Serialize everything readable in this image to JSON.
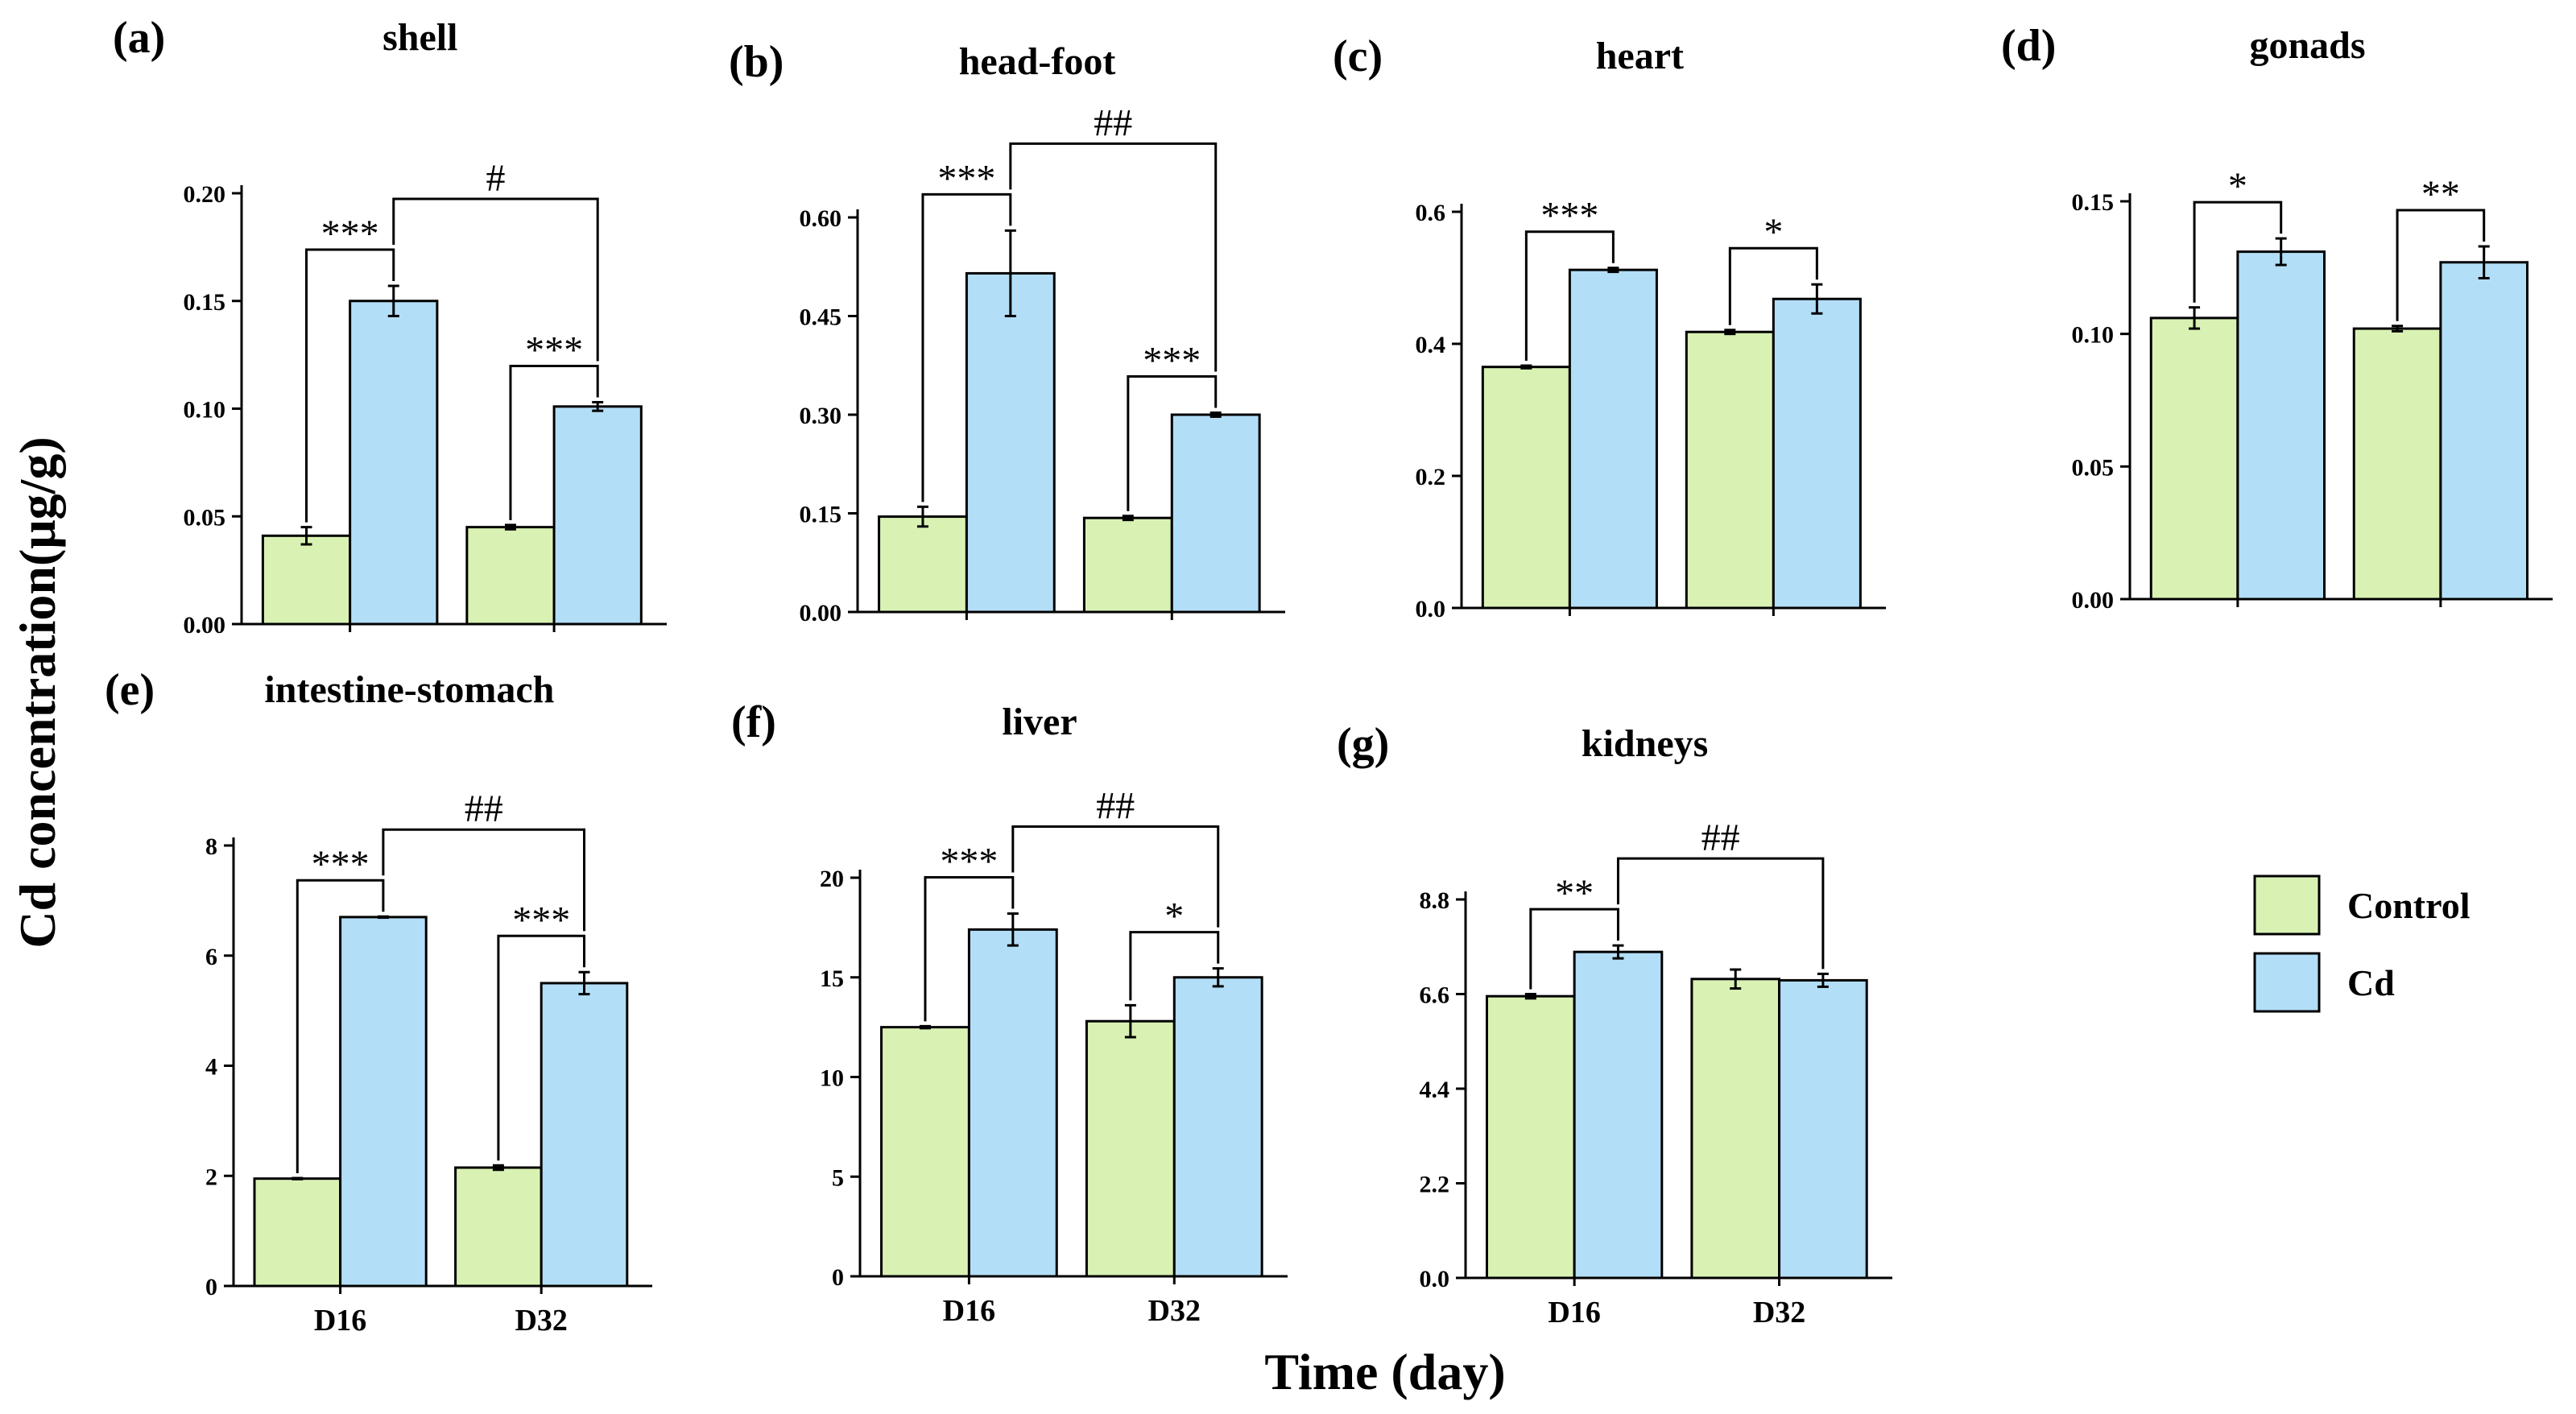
{
  "chart_data": {
    "type": "bar",
    "ylabel": "Cd concentration(μg/g)",
    "xlabel": "Time (day)",
    "categories": [
      "D16",
      "D32"
    ],
    "legend": [
      {
        "name": "Control",
        "color": "#d9f2b4"
      },
      {
        "name": "Cd",
        "color": "#b3def7"
      }
    ],
    "panels": [
      {
        "letter": "(a)",
        "title": "shell",
        "show_x_labels": false,
        "yticks": [
          "0.00",
          "0.05",
          "0.10",
          "0.15",
          "0.20"
        ],
        "ylim": [
          0,
          0.2
        ],
        "series": [
          {
            "name": "Control",
            "values": [
              0.041,
              0.045
            ],
            "errors": [
              0.004,
              0.001
            ]
          },
          {
            "name": "Cd",
            "values": [
              0.15,
              0.101
            ],
            "errors": [
              0.007,
              0.002
            ]
          }
        ],
        "sig_within": [
          "***",
          "***"
        ],
        "sig_between": "#"
      },
      {
        "letter": "(b)",
        "title": "head-foot",
        "show_x_labels": false,
        "yticks": [
          "0.00",
          "0.15",
          "0.30",
          "0.45",
          "0.60"
        ],
        "ylim": [
          0,
          0.6
        ],
        "series": [
          {
            "name": "Control",
            "values": [
              0.145,
              0.143
            ],
            "errors": [
              0.015,
              0.003
            ]
          },
          {
            "name": "Cd",
            "values": [
              0.515,
              0.3
            ],
            "errors": [
              0.065,
              0.003
            ]
          }
        ],
        "sig_within": [
          "***",
          "***"
        ],
        "sig_between": "##"
      },
      {
        "letter": "(c)",
        "title": "heart",
        "show_x_labels": false,
        "yticks": [
          "0.0",
          "0.2",
          "0.4",
          "0.6"
        ],
        "ylim": [
          0,
          0.6
        ],
        "series": [
          {
            "name": "Control",
            "values": [
              0.365,
              0.418
            ],
            "errors": [
              0.002,
              0.003
            ]
          },
          {
            "name": "Cd",
            "values": [
              0.512,
              0.468
            ],
            "errors": [
              0.003,
              0.022
            ]
          }
        ],
        "sig_within": [
          "***",
          "*"
        ],
        "sig_between": ""
      },
      {
        "letter": "(d)",
        "title": "gonads",
        "show_x_labels": false,
        "yticks": [
          "0.00",
          "0.05",
          "0.10",
          "0.15"
        ],
        "ylim": [
          0,
          0.15
        ],
        "series": [
          {
            "name": "Control",
            "values": [
              0.106,
              0.102
            ],
            "errors": [
              0.004,
              0.001
            ]
          },
          {
            "name": "Cd",
            "values": [
              0.131,
              0.127
            ],
            "errors": [
              0.005,
              0.006
            ]
          }
        ],
        "sig_within": [
          "*",
          "**"
        ],
        "sig_between": ""
      },
      {
        "letter": "(e)",
        "title": "intestine-stomach",
        "show_x_labels": true,
        "yticks": [
          "0",
          "2",
          "4",
          "6",
          "8"
        ],
        "ylim": [
          0,
          8
        ],
        "series": [
          {
            "name": "Control",
            "values": [
              1.95,
              2.15
            ],
            "errors": [
              0.01,
              0.04
            ]
          },
          {
            "name": "Cd",
            "values": [
              6.7,
              5.5
            ],
            "errors": [
              0.01,
              0.2
            ]
          }
        ],
        "sig_within": [
          "***",
          "***"
        ],
        "sig_between": "##"
      },
      {
        "letter": "(f)",
        "title": "liver",
        "show_x_labels": true,
        "yticks": [
          "0",
          "5",
          "10",
          "15",
          "20"
        ],
        "ylim": [
          0,
          20
        ],
        "series": [
          {
            "name": "Control",
            "values": [
              12.5,
              12.8
            ],
            "errors": [
              0.05,
              0.8
            ]
          },
          {
            "name": "Cd",
            "values": [
              17.4,
              15.0
            ],
            "errors": [
              0.8,
              0.45
            ]
          }
        ],
        "sig_within": [
          "***",
          "*"
        ],
        "sig_between": "##"
      },
      {
        "letter": "(g)",
        "title": "kidneys",
        "show_x_labels": true,
        "yticks": [
          "0.0",
          "2.2",
          "4.4",
          "6.6",
          "8.8"
        ],
        "ylim": [
          0,
          8.8
        ],
        "series": [
          {
            "name": "Control",
            "values": [
              6.55,
              6.95
            ],
            "errors": [
              0.05,
              0.22
            ]
          },
          {
            "name": "Cd",
            "values": [
              7.58,
              6.92
            ],
            "errors": [
              0.15,
              0.15
            ]
          }
        ],
        "sig_within": [
          "**",
          ""
        ],
        "sig_between": "##"
      }
    ]
  }
}
